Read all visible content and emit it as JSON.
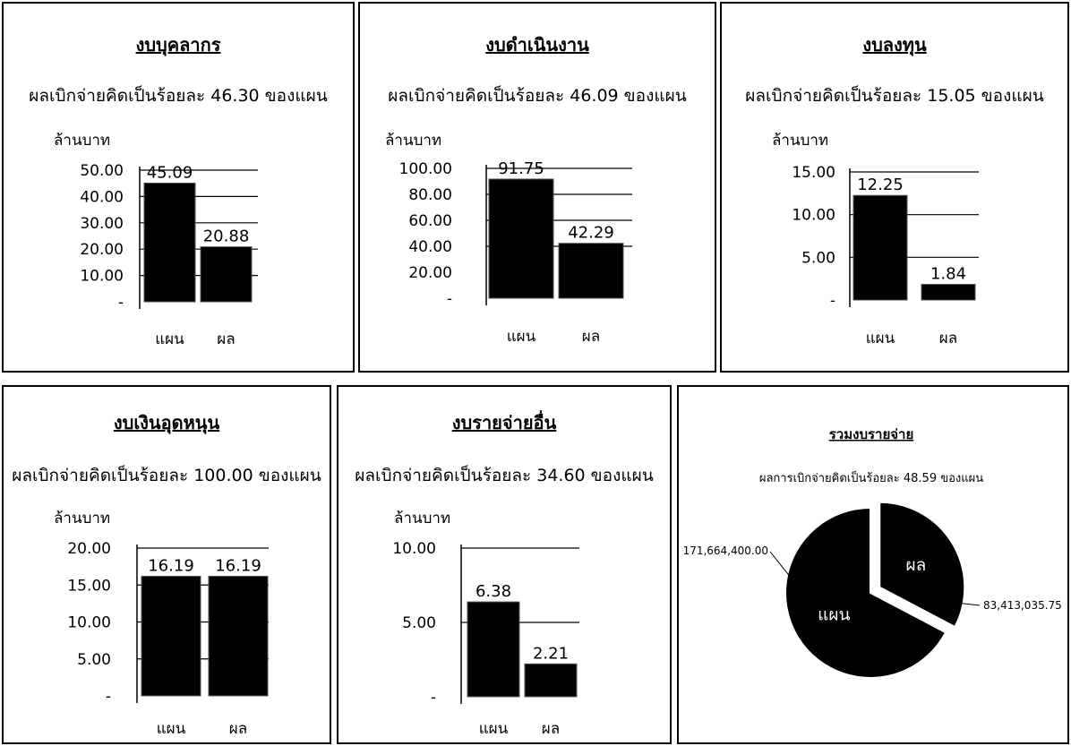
{
  "ylabel": "ล้านบาท",
  "chart_data": [
    {
      "type": "bar",
      "title": "งบบุคลากร",
      "subtitle": "ผลเบิกจ่ายคิดเป็นร้อยละ 46.30 ของแผน",
      "ylabel": "ล้านบาท",
      "categories": [
        "แผน",
        "ผล"
      ],
      "values": [
        45.09,
        20.88
      ],
      "labels": [
        "45.09",
        "20.88"
      ],
      "ylim": [
        0,
        50
      ],
      "yticks": [
        0,
        10,
        20,
        30,
        40,
        50
      ],
      "ytick_labels": [
        "-",
        "10.00",
        "20.00",
        "30.00",
        "40.00",
        "50.00"
      ]
    },
    {
      "type": "bar",
      "title": "งบดำเนินงาน",
      "subtitle": "ผลเบิกจ่ายคิดเป็นร้อยละ 46.09 ของแผน",
      "ylabel": "ล้านบาท",
      "categories": [
        "แผน",
        "ผล"
      ],
      "values": [
        91.75,
        42.29
      ],
      "labels": [
        "91.75",
        "42.29"
      ],
      "ylim": [
        0,
        100
      ],
      "yticks": [
        0,
        20,
        40,
        60,
        80,
        100
      ],
      "ytick_labels": [
        "-",
        "20.00",
        "40.00",
        "60.00",
        "80.00",
        "100.00"
      ]
    },
    {
      "type": "bar",
      "title": "งบลงทุน",
      "subtitle": "ผลเบิกจ่ายคิดเป็นร้อยละ 15.05 ของแผน",
      "ylabel": "ล้านบาท",
      "categories": [
        "แผน",
        "ผล"
      ],
      "values": [
        12.25,
        1.84
      ],
      "labels": [
        "12.25",
        "1.84"
      ],
      "ylim": [
        0,
        15
      ],
      "yticks": [
        0,
        5,
        10,
        15
      ],
      "ytick_labels": [
        "-",
        "5.00",
        "10.00",
        "15.00"
      ]
    },
    {
      "type": "bar",
      "title": "งบเงินอุดหนุน",
      "subtitle": "ผลเบิกจ่ายคิดเป็นร้อยละ 100.00 ของแผน",
      "ylabel": "ล้านบาท",
      "categories": [
        "แผน",
        "ผล"
      ],
      "values": [
        16.19,
        16.19
      ],
      "labels": [
        "16.19",
        "16.19"
      ],
      "ylim": [
        0,
        20
      ],
      "yticks": [
        0,
        5,
        10,
        15,
        20
      ],
      "ytick_labels": [
        "-",
        "5.00",
        "10.00",
        "15.00",
        "20.00"
      ]
    },
    {
      "type": "bar",
      "title": "งบรายจ่ายอื่น",
      "subtitle": "ผลเบิกจ่ายคิดเป็นร้อยละ 34.60 ของแผน",
      "ylabel": "ล้านบาท",
      "categories": [
        "แผน",
        "ผล"
      ],
      "values": [
        6.38,
        2.21
      ],
      "labels": [
        "6.38",
        "2.21"
      ],
      "ylim": [
        0,
        10
      ],
      "yticks": [
        0,
        5,
        10
      ],
      "ytick_labels": [
        "-",
        "5.00",
        "10.00"
      ]
    },
    {
      "type": "pie",
      "title": "รวมงบรายจ่าย",
      "subtitle": "ผลการเบิกจ่ายคิดเป็นร้อยละ 48.59 ของแผน",
      "categories": [
        "แผน",
        "ผล"
      ],
      "values": [
        171664400.0,
        83413035.75
      ],
      "labels": [
        "171,664,400.00",
        "83,413,035.75"
      ]
    }
  ]
}
